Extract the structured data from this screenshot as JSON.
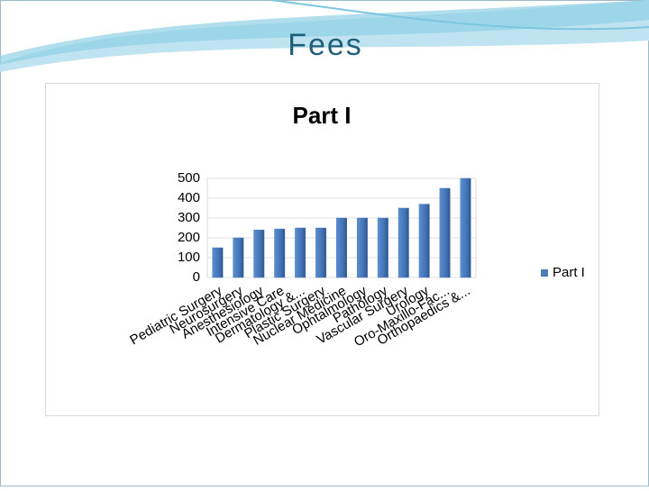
{
  "slide_title": "Fees",
  "chart_data": {
    "type": "bar",
    "title": "Part I",
    "categories": [
      "Pediatric Surgery",
      "Neurosurgery",
      "Anesthesiology",
      "Intensive Care",
      "Dermatology &...",
      "Plastic Surgery",
      "Nuclear Medicine",
      "Ophtalmology",
      "Pathology",
      "Vascular Surgery",
      "Urology",
      "Oro-Maxillo-Fac...",
      "Orthopaedics &..."
    ],
    "series": [
      {
        "name": "Part I",
        "color": "#4a7ebb",
        "values": [
          150,
          200,
          240,
          245,
          250,
          250,
          300,
          300,
          300,
          350,
          370,
          450,
          500
        ]
      }
    ],
    "ylim": [
      0,
      500
    ],
    "yticks": [
      0,
      100,
      200,
      300,
      400,
      500
    ],
    "grid": true,
    "legend": "right"
  }
}
